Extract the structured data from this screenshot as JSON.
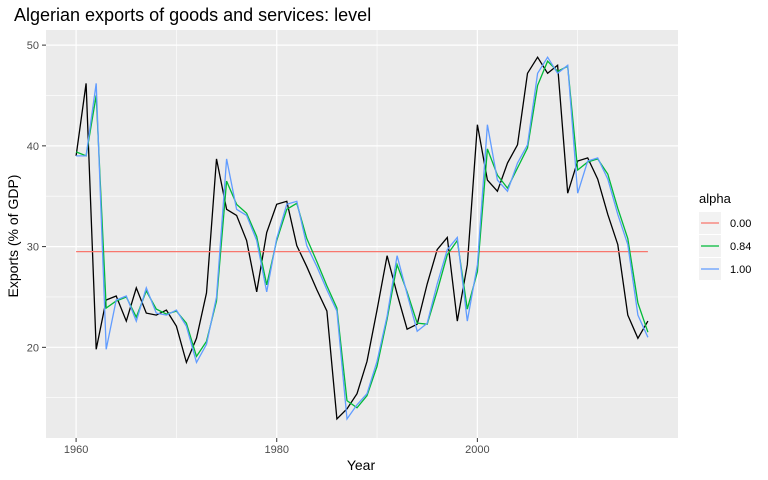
{
  "chart_data": {
    "type": "line",
    "title": "Algerian exports of goods and services: level",
    "xlabel": "Year",
    "ylabel": "Exports (% of GDP)",
    "xlim": [
      1957,
      2020
    ],
    "ylim": [
      11,
      51.5
    ],
    "x_ticks": [
      1960,
      1980,
      2000
    ],
    "y_ticks": [
      20,
      30,
      40,
      50
    ],
    "grid": true,
    "legend": {
      "title": "alpha",
      "position": "right",
      "entries": [
        "0.00",
        "0.84",
        "1.00"
      ]
    },
    "x": [
      1960,
      1961,
      1962,
      1963,
      1964,
      1965,
      1966,
      1967,
      1968,
      1969,
      1970,
      1971,
      1972,
      1973,
      1974,
      1975,
      1976,
      1977,
      1978,
      1979,
      1980,
      1981,
      1982,
      1983,
      1984,
      1985,
      1986,
      1987,
      1988,
      1989,
      1990,
      1991,
      1992,
      1993,
      1994,
      1995,
      1996,
      1997,
      1998,
      1999,
      2000,
      2001,
      2002,
      2003,
      2004,
      2005,
      2006,
      2007,
      2008,
      2009,
      2010,
      2011,
      2012,
      2013,
      2014,
      2015,
      2016,
      2017
    ],
    "observed": [
      39.0,
      46.2,
      19.8,
      24.7,
      25.1,
      22.6,
      25.9,
      23.4,
      23.2,
      23.7,
      22.1,
      18.5,
      20.9,
      25.4,
      38.7,
      33.7,
      33.1,
      30.6,
      25.5,
      31.4,
      34.2,
      34.5,
      30.1,
      28.0,
      25.7,
      23.6,
      12.9,
      13.9,
      15.4,
      18.6,
      23.7,
      29.1,
      25.3,
      21.8,
      22.3,
      26.3,
      29.7,
      30.9,
      22.6,
      28.2,
      42.1,
      36.6,
      35.5,
      38.3,
      40.1,
      47.2,
      48.8,
      47.2,
      48.0,
      35.3,
      38.5,
      38.8,
      36.7,
      33.2,
      30.2,
      23.2,
      20.9,
      22.6
    ],
    "series": [
      {
        "name": "0.00",
        "color": "#f8766d",
        "values": [
          29.5,
          29.5,
          29.5,
          29.5,
          29.5,
          29.5,
          29.5,
          29.5,
          29.5,
          29.5,
          29.5,
          29.5,
          29.5,
          29.5,
          29.5,
          29.5,
          29.5,
          29.5,
          29.5,
          29.5,
          29.5,
          29.5,
          29.5,
          29.5,
          29.5,
          29.5,
          29.5,
          29.5,
          29.5,
          29.5,
          29.5,
          29.5,
          29.5,
          29.5,
          29.5,
          29.5,
          29.5,
          29.5,
          29.5,
          29.5,
          29.5,
          29.5,
          29.5,
          29.5,
          29.5,
          29.5,
          29.5,
          29.5,
          29.5,
          29.5,
          29.5,
          29.5,
          29.5,
          29.5,
          29.5,
          29.5,
          29.5,
          29.5
        ]
      },
      {
        "name": "0.84",
        "color": "#00ba38",
        "values": [
          39.4,
          39.0,
          45.0,
          23.9,
          24.6,
          25.0,
          23.0,
          25.6,
          23.8,
          23.3,
          23.6,
          22.4,
          19.1,
          20.6,
          24.6,
          36.5,
          34.2,
          33.3,
          31.0,
          26.2,
          30.6,
          33.7,
          34.3,
          30.8,
          28.5,
          26.1,
          23.9,
          14.7,
          14.0,
          15.2,
          18.1,
          22.8,
          28.2,
          25.5,
          22.4,
          22.3,
          25.6,
          29.2,
          30.6,
          23.8,
          27.5,
          39.7,
          37.1,
          35.8,
          37.8,
          39.8,
          46.0,
          48.4,
          47.4,
          47.9,
          37.6,
          38.4,
          38.7,
          37.2,
          33.8,
          30.8,
          24.4,
          21.5
        ]
      },
      {
        "name": "1.00",
        "color": "#619cff",
        "values": [
          39.0,
          39.0,
          46.2,
          19.8,
          24.7,
          25.1,
          22.6,
          25.9,
          23.4,
          23.2,
          23.7,
          22.1,
          18.5,
          20.3,
          25.0,
          38.7,
          33.7,
          33.1,
          30.6,
          25.5,
          30.8,
          34.2,
          34.5,
          30.1,
          28.0,
          25.7,
          23.6,
          12.9,
          14.3,
          15.4,
          18.6,
          23.1,
          29.1,
          25.3,
          21.6,
          22.4,
          26.3,
          29.7,
          30.9,
          22.6,
          28.2,
          42.1,
          36.6,
          35.5,
          38.3,
          40.1,
          47.2,
          48.8,
          47.2,
          48.0,
          35.3,
          38.5,
          38.8,
          36.7,
          33.2,
          30.2,
          23.2,
          21.0
        ]
      }
    ],
    "observed_color": "#000000",
    "panel_color": "#ebebeb",
    "grid_color": "#ffffff"
  }
}
